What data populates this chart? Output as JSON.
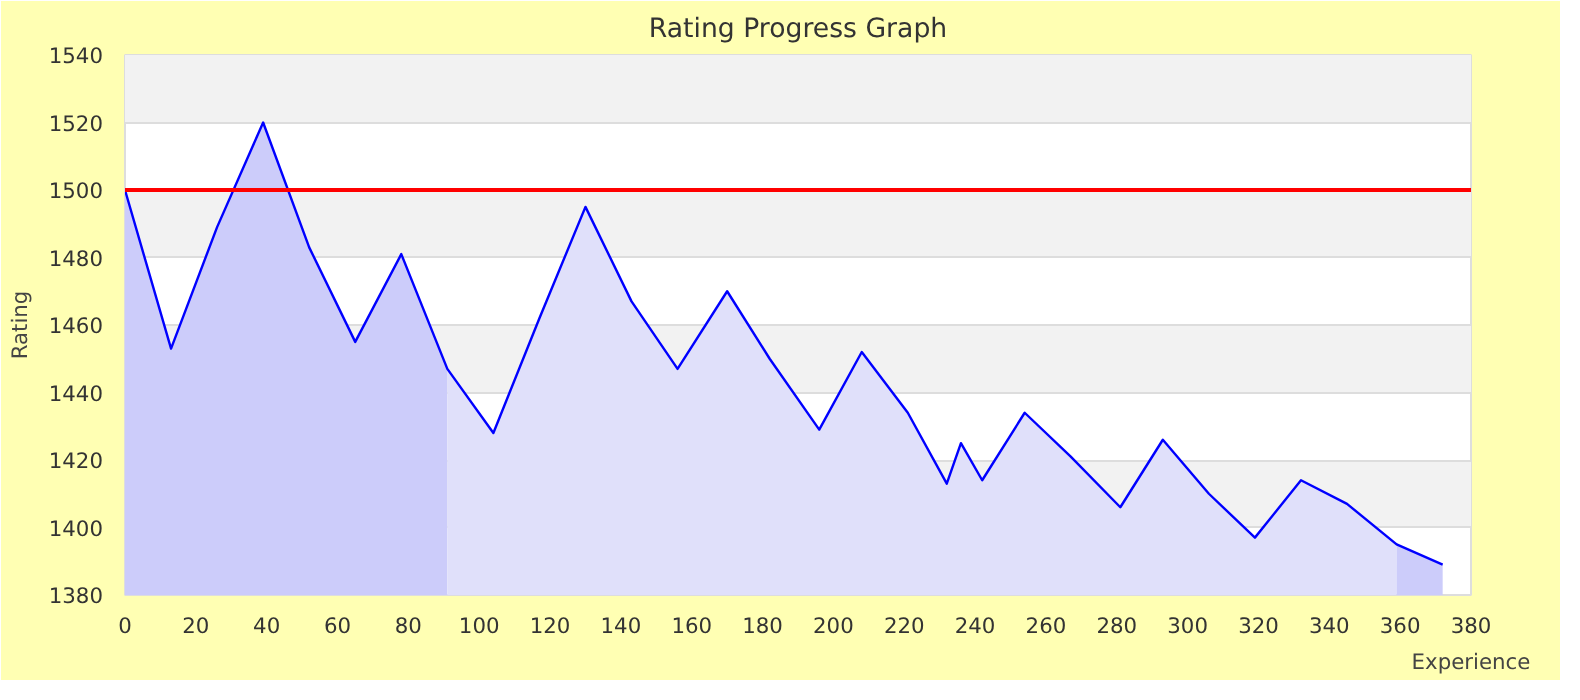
{
  "chart_data": {
    "type": "area",
    "title": "Rating Progress Graph",
    "xlabel": "Experience",
    "ylabel": "Rating",
    "xlim": [
      0,
      380
    ],
    "ylim": [
      1380,
      1540
    ],
    "xticks": [
      0,
      20,
      40,
      60,
      80,
      100,
      120,
      140,
      160,
      180,
      200,
      220,
      240,
      260,
      280,
      300,
      320,
      340,
      360,
      380
    ],
    "yticks": [
      1380,
      1400,
      1420,
      1440,
      1460,
      1480,
      1500,
      1520,
      1540
    ],
    "grid": "y",
    "series": [
      {
        "color": "#ccccfa",
        "x": [
          0,
          13,
          26,
          39,
          52,
          65,
          78,
          91
        ],
        "values": [
          1500,
          1453,
          1489,
          1520,
          1483,
          1455,
          1481,
          1447
        ]
      },
      {
        "color": "#e0e0fa",
        "x": [
          91,
          104,
          117,
          130,
          143,
          156,
          170,
          182,
          196,
          208,
          221,
          232,
          236,
          242,
          254,
          267,
          281,
          293,
          306,
          319,
          332,
          345,
          359
        ],
        "values": [
          1447,
          1428,
          1462,
          1495,
          1467,
          1447,
          1470,
          1450,
          1429,
          1452,
          1434,
          1413,
          1425,
          1414,
          1434,
          1421,
          1406,
          1426,
          1410,
          1397,
          1414,
          1407,
          1395
        ]
      },
      {
        "color": "#ccccfa",
        "x": [
          359,
          372
        ],
        "values": [
          1395,
          1389
        ]
      },
      {
        "type": "line",
        "color": "#0000ff",
        "x": [
          0,
          13,
          26,
          39,
          52,
          65,
          78,
          91,
          104,
          117,
          130,
          143,
          156,
          170,
          182,
          196,
          208,
          221,
          232,
          236,
          242,
          254,
          267,
          281,
          293,
          306,
          319,
          332,
          345,
          359,
          372
        ],
        "values": [
          1500,
          1453,
          1489,
          1520,
          1483,
          1455,
          1481,
          1447,
          1428,
          1462,
          1495,
          1467,
          1447,
          1470,
          1450,
          1429,
          1452,
          1434,
          1413,
          1425,
          1414,
          1434,
          1421,
          1406,
          1426,
          1410,
          1397,
          1414,
          1407,
          1395,
          1389
        ]
      }
    ],
    "ref_lines": [
      {
        "axis": "y",
        "value": 1500,
        "color": "#ff0000"
      }
    ]
  }
}
